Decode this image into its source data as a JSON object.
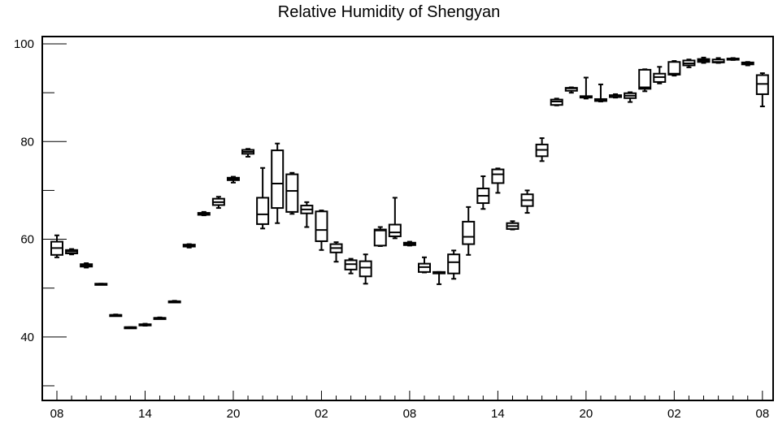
{
  "chart_data": {
    "type": "box",
    "title": "Relative Humidity of Shengyan",
    "xlabel": "",
    "ylabel": "",
    "ylim": [
      27,
      101.5
    ],
    "y_ticks": [
      40,
      60,
      80,
      100
    ],
    "x_tick_labels": [
      "08",
      "14",
      "20",
      "02",
      "08",
      "14",
      "20",
      "02",
      "08"
    ],
    "x_ticks_at": [
      0,
      6,
      12,
      18,
      24,
      30,
      36,
      42,
      48
    ],
    "grid": false,
    "box_color": "#000000",
    "boxes": [
      {
        "x": 0,
        "min": 56.3,
        "q1": 56.8,
        "median": 58.2,
        "q3": 59.5,
        "max": 60.8
      },
      {
        "x": 1,
        "min": 56.9,
        "q1": 57.1,
        "median": 57.5,
        "q3": 57.8,
        "max": 58.0
      },
      {
        "x": 2,
        "min": 54.2,
        "q1": 54.4,
        "median": 54.7,
        "q3": 54.9,
        "max": 55.1
      },
      {
        "x": 3,
        "min": 50.8,
        "q1": 50.8,
        "median": 50.8,
        "q3": 50.9,
        "max": 50.9
      },
      {
        "x": 4,
        "min": 44.4,
        "q1": 44.4,
        "median": 44.5,
        "q3": 44.5,
        "max": 44.6
      },
      {
        "x": 5,
        "min": 41.9,
        "q1": 41.9,
        "median": 42.0,
        "q3": 42.0,
        "max": 42.0
      },
      {
        "x": 6,
        "min": 42.3,
        "q1": 42.4,
        "median": 42.5,
        "q3": 42.6,
        "max": 42.7
      },
      {
        "x": 7,
        "min": 43.8,
        "q1": 43.8,
        "median": 43.9,
        "q3": 43.9,
        "max": 44.0
      },
      {
        "x": 8,
        "min": 47.2,
        "q1": 47.2,
        "median": 47.3,
        "q3": 47.3,
        "max": 47.4
      },
      {
        "x": 9,
        "min": 58.3,
        "q1": 58.5,
        "median": 58.7,
        "q3": 58.9,
        "max": 59.0
      },
      {
        "x": 10,
        "min": 64.9,
        "q1": 65.0,
        "median": 65.2,
        "q3": 65.4,
        "max": 65.6
      },
      {
        "x": 11,
        "min": 66.4,
        "q1": 67.0,
        "median": 67.6,
        "q3": 68.3,
        "max": 68.7
      },
      {
        "x": 12,
        "min": 71.6,
        "q1": 72.1,
        "median": 72.4,
        "q3": 72.6,
        "max": 72.8
      },
      {
        "x": 13,
        "min": 76.9,
        "q1": 77.5,
        "median": 77.9,
        "q3": 78.3,
        "max": 78.5
      },
      {
        "x": 14,
        "min": 62.2,
        "q1": 63.1,
        "median": 65.1,
        "q3": 68.5,
        "max": 74.6
      },
      {
        "x": 15,
        "min": 63.3,
        "q1": 66.4,
        "median": 71.4,
        "q3": 78.2,
        "max": 79.6
      },
      {
        "x": 16,
        "min": 65.2,
        "q1": 65.6,
        "median": 69.9,
        "q3": 73.3,
        "max": 73.6
      },
      {
        "x": 17,
        "min": 62.5,
        "q1": 65.3,
        "median": 66.1,
        "q3": 66.9,
        "max": 67.6
      },
      {
        "x": 18,
        "min": 57.8,
        "q1": 59.6,
        "median": 61.9,
        "q3": 65.7,
        "max": 65.9
      },
      {
        "x": 19,
        "min": 55.4,
        "q1": 57.3,
        "median": 58.2,
        "q3": 59.0,
        "max": 59.4
      },
      {
        "x": 20,
        "min": 53.0,
        "q1": 53.8,
        "median": 54.9,
        "q3": 55.7,
        "max": 56.0
      },
      {
        "x": 21,
        "min": 50.9,
        "q1": 52.4,
        "median": 54.2,
        "q3": 55.5,
        "max": 56.9
      },
      {
        "x": 22,
        "min": 58.6,
        "q1": 58.7,
        "median": 61.8,
        "q3": 62.0,
        "max": 62.5
      },
      {
        "x": 23,
        "min": 60.2,
        "q1": 60.6,
        "median": 61.4,
        "q3": 63.0,
        "max": 68.5
      },
      {
        "x": 24,
        "min": 58.7,
        "q1": 58.8,
        "median": 59.1,
        "q3": 59.3,
        "max": 59.5
      },
      {
        "x": 25,
        "min": 53.2,
        "q1": 53.3,
        "median": 54.3,
        "q3": 55.0,
        "max": 56.3
      },
      {
        "x": 26,
        "min": 50.8,
        "q1": 53.0,
        "median": 53.2,
        "q3": 53.3,
        "max": 53.3
      },
      {
        "x": 27,
        "min": 51.9,
        "q1": 53.0,
        "median": 55.3,
        "q3": 56.9,
        "max": 57.7
      },
      {
        "x": 28,
        "min": 56.8,
        "q1": 59.0,
        "median": 60.5,
        "q3": 63.6,
        "max": 66.6
      },
      {
        "x": 29,
        "min": 66.2,
        "q1": 67.4,
        "median": 68.9,
        "q3": 70.4,
        "max": 72.9
      },
      {
        "x": 30,
        "min": 69.5,
        "q1": 71.5,
        "median": 73.3,
        "q3": 74.3,
        "max": 74.5
      },
      {
        "x": 31,
        "min": 62.0,
        "q1": 62.1,
        "median": 62.7,
        "q3": 63.3,
        "max": 63.7
      },
      {
        "x": 32,
        "min": 65.4,
        "q1": 66.8,
        "median": 68.0,
        "q3": 69.2,
        "max": 70.0
      },
      {
        "x": 33,
        "min": 76.0,
        "q1": 77.0,
        "median": 78.3,
        "q3": 79.4,
        "max": 80.7
      },
      {
        "x": 34,
        "min": 87.4,
        "q1": 87.5,
        "median": 88.2,
        "q3": 88.6,
        "max": 88.8
      },
      {
        "x": 35,
        "min": 90.0,
        "q1": 90.4,
        "median": 90.9,
        "q3": 91.0,
        "max": 91.1
      },
      {
        "x": 36,
        "min": 88.8,
        "q1": 89.0,
        "median": 89.1,
        "q3": 89.3,
        "max": 93.1
      },
      {
        "x": 37,
        "min": 88.2,
        "q1": 88.3,
        "median": 88.4,
        "q3": 88.7,
        "max": 91.7
      },
      {
        "x": 38,
        "min": 89.0,
        "q1": 89.1,
        "median": 89.4,
        "q3": 89.5,
        "max": 89.7
      },
      {
        "x": 39,
        "min": 88.1,
        "q1": 88.9,
        "median": 89.4,
        "q3": 89.9,
        "max": 90.1
      },
      {
        "x": 40,
        "min": 90.3,
        "q1": 90.8,
        "median": 91.1,
        "q3": 94.7,
        "max": 94.8
      },
      {
        "x": 41,
        "min": 91.9,
        "q1": 92.2,
        "median": 93.2,
        "q3": 93.9,
        "max": 95.3
      },
      {
        "x": 42,
        "min": 93.5,
        "q1": 93.7,
        "median": 93.9,
        "q3": 96.3,
        "max": 96.5
      },
      {
        "x": 43,
        "min": 95.2,
        "q1": 95.6,
        "median": 96.0,
        "q3": 96.6,
        "max": 96.8
      },
      {
        "x": 44,
        "min": 96.1,
        "q1": 96.3,
        "median": 96.6,
        "q3": 96.9,
        "max": 97.2
      },
      {
        "x": 45,
        "min": 96.1,
        "q1": 96.2,
        "median": 96.3,
        "q3": 96.8,
        "max": 97.1
      },
      {
        "x": 46,
        "min": 96.7,
        "q1": 96.8,
        "median": 96.9,
        "q3": 97.0,
        "max": 97.1
      },
      {
        "x": 47,
        "min": 95.6,
        "q1": 95.8,
        "median": 96.0,
        "q3": 96.2,
        "max": 96.3
      },
      {
        "x": 48,
        "min": 87.2,
        "q1": 89.7,
        "median": 91.8,
        "q3": 93.6,
        "max": 94.0
      }
    ]
  }
}
